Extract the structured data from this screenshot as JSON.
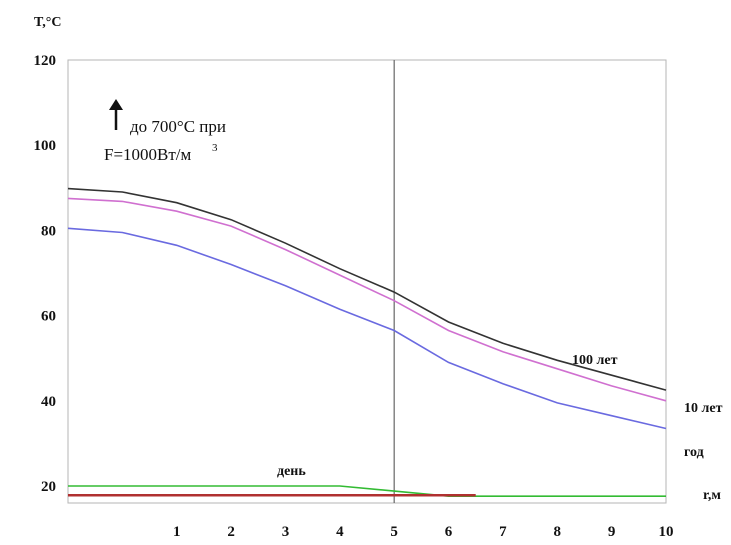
{
  "chart_data": {
    "type": "line",
    "ylabel": "T,°C",
    "xlabel": "r,м",
    "ylim": [
      16,
      120
    ],
    "xlim": [
      -1.0,
      10.0
    ],
    "yticks": [
      20,
      40,
      60,
      80,
      100,
      120
    ],
    "xticks": [
      1,
      2,
      3,
      4,
      5,
      6,
      7,
      8,
      9,
      10
    ],
    "grid": false,
    "vline_x": 5,
    "annotation": {
      "line1": "до 700°C при",
      "line2": "F=1000Вт/м",
      "superscript": "3"
    },
    "series": [
      {
        "name": "100 лет",
        "color": "#333333",
        "points": [
          [
            -1.0,
            89.8
          ],
          [
            0.0,
            89.0
          ],
          [
            1.0,
            86.5
          ],
          [
            2.0,
            82.5
          ],
          [
            3.0,
            77.0
          ],
          [
            4.0,
            71.0
          ],
          [
            5.0,
            65.5
          ],
          [
            6.0,
            58.5
          ],
          [
            7.0,
            53.5
          ],
          [
            8.0,
            49.5
          ],
          [
            9.0,
            46.0
          ],
          [
            10.0,
            42.5
          ]
        ]
      },
      {
        "name": "10 лет",
        "color": "#d070d0",
        "points": [
          [
            -1.0,
            87.5
          ],
          [
            0.0,
            86.8
          ],
          [
            1.0,
            84.5
          ],
          [
            2.0,
            81.0
          ],
          [
            3.0,
            75.5
          ],
          [
            4.0,
            69.5
          ],
          [
            5.0,
            63.5
          ],
          [
            6.0,
            56.5
          ],
          [
            7.0,
            51.5
          ],
          [
            8.0,
            47.5
          ],
          [
            9.0,
            43.5
          ],
          [
            10.0,
            40.0
          ]
        ]
      },
      {
        "name": "год",
        "color": "#6a6ae0",
        "points": [
          [
            -1.0,
            80.5
          ],
          [
            0.0,
            79.5
          ],
          [
            1.0,
            76.5
          ],
          [
            2.0,
            72.0
          ],
          [
            3.0,
            67.0
          ],
          [
            4.0,
            61.5
          ],
          [
            5.0,
            56.5
          ],
          [
            6.0,
            49.0
          ],
          [
            7.0,
            44.0
          ],
          [
            8.0,
            39.5
          ],
          [
            9.0,
            36.5
          ],
          [
            10.0,
            33.5
          ]
        ]
      },
      {
        "name": "день",
        "color": "#33bb33",
        "points": [
          [
            -1.0,
            20.0
          ],
          [
            0.0,
            20.0
          ],
          [
            1.0,
            20.0
          ],
          [
            2.0,
            20.0
          ],
          [
            3.0,
            20.0
          ],
          [
            4.0,
            20.0
          ],
          [
            5.0,
            18.8
          ],
          [
            6.0,
            17.6
          ],
          [
            7.0,
            17.6
          ],
          [
            8.0,
            17.6
          ],
          [
            9.0,
            17.6
          ],
          [
            10.0,
            17.6
          ]
        ]
      },
      {
        "name": "",
        "color": "#b03030",
        "points": [
          [
            -1.0,
            17.8
          ],
          [
            0.0,
            17.8
          ],
          [
            1.0,
            17.8
          ],
          [
            2.0,
            17.8
          ],
          [
            3.0,
            17.8
          ],
          [
            4.0,
            17.8
          ],
          [
            5.0,
            17.8
          ],
          [
            6.0,
            17.8
          ],
          [
            6.5,
            17.8
          ]
        ]
      }
    ]
  }
}
